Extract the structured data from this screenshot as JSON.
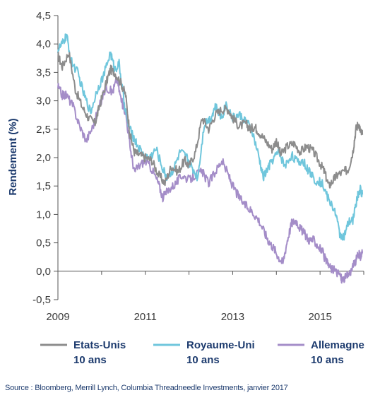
{
  "chart_data": {
    "type": "line",
    "ylabel": "Rendement (%)",
    "xlabel": "",
    "ylim": [
      -0.5,
      4.5
    ],
    "xlim": [
      2009.0,
      2016.0
    ],
    "y_ticks": [
      "4,5",
      "4,0",
      "3,5",
      "3,0",
      "2,5",
      "2,0",
      "1,5",
      "1,0",
      "0,5",
      "0,0",
      "-0,5"
    ],
    "x_ticks": [
      "2009",
      "2011",
      "2013",
      "2015"
    ],
    "grid": false,
    "legend_position": "bottom",
    "series": [
      {
        "name": "Etats-Unis 10 ans",
        "color": "#8c8c8c",
        "points": [
          [
            2009.0,
            3.8
          ],
          [
            2009.1,
            3.6
          ],
          [
            2009.25,
            3.85
          ],
          [
            2009.4,
            3.2
          ],
          [
            2009.55,
            2.9
          ],
          [
            2009.7,
            2.7
          ],
          [
            2009.85,
            2.6
          ],
          [
            2009.95,
            2.9
          ],
          [
            2010.1,
            3.3
          ],
          [
            2010.2,
            3.55
          ],
          [
            2010.3,
            3.5
          ],
          [
            2010.45,
            3.3
          ],
          [
            2010.55,
            3.1
          ],
          [
            2010.65,
            2.4
          ],
          [
            2010.75,
            2.1
          ],
          [
            2010.85,
            2.05
          ],
          [
            2011.0,
            2.0
          ],
          [
            2011.15,
            1.95
          ],
          [
            2011.3,
            1.7
          ],
          [
            2011.45,
            1.55
          ],
          [
            2011.6,
            1.85
          ],
          [
            2011.75,
            1.75
          ],
          [
            2011.9,
            1.95
          ],
          [
            2012.0,
            1.85
          ],
          [
            2012.15,
            2.1
          ],
          [
            2012.3,
            2.7
          ],
          [
            2012.45,
            2.5
          ],
          [
            2012.6,
            2.75
          ],
          [
            2012.75,
            2.85
          ],
          [
            2012.9,
            2.85
          ],
          [
            2013.0,
            2.7
          ],
          [
            2013.15,
            2.55
          ],
          [
            2013.3,
            2.6
          ],
          [
            2013.4,
            2.5
          ],
          [
            2013.5,
            2.55
          ],
          [
            2013.6,
            2.45
          ],
          [
            2013.75,
            2.3
          ],
          [
            2013.9,
            2.15
          ],
          [
            2014.0,
            2.3
          ],
          [
            2014.1,
            2.05
          ],
          [
            2014.25,
            2.2
          ],
          [
            2014.4,
            2.25
          ],
          [
            2014.55,
            2.1
          ],
          [
            2014.7,
            2.2
          ],
          [
            2014.85,
            2.1
          ],
          [
            2015.0,
            1.9
          ],
          [
            2015.1,
            1.75
          ],
          [
            2015.2,
            1.5
          ],
          [
            2015.3,
            1.6
          ],
          [
            2015.4,
            1.7
          ],
          [
            2015.55,
            1.75
          ],
          [
            2015.65,
            1.8
          ],
          [
            2015.75,
            2.1
          ],
          [
            2015.82,
            2.5
          ],
          [
            2015.88,
            2.6
          ],
          [
            2015.93,
            2.45
          ],
          [
            2015.97,
            2.4
          ]
        ]
      },
      {
        "name": "Royaume-Uni 10 ans",
        "color": "#6fc6dc",
        "points": [
          [
            2009.0,
            3.9
          ],
          [
            2009.1,
            4.0
          ],
          [
            2009.2,
            4.15
          ],
          [
            2009.3,
            3.7
          ],
          [
            2009.45,
            3.5
          ],
          [
            2009.6,
            3.1
          ],
          [
            2009.75,
            2.8
          ],
          [
            2009.9,
            3.2
          ],
          [
            2010.05,
            3.45
          ],
          [
            2010.2,
            3.85
          ],
          [
            2010.3,
            3.55
          ],
          [
            2010.4,
            3.65
          ],
          [
            2010.5,
            3.05
          ],
          [
            2010.6,
            2.6
          ],
          [
            2010.7,
            2.4
          ],
          [
            2010.8,
            2.25
          ],
          [
            2010.95,
            2.05
          ],
          [
            2011.1,
            2.0
          ],
          [
            2011.25,
            2.15
          ],
          [
            2011.4,
            1.8
          ],
          [
            2011.5,
            1.65
          ],
          [
            2011.65,
            1.8
          ],
          [
            2011.8,
            2.1
          ],
          [
            2011.95,
            2.0
          ],
          [
            2012.05,
            1.85
          ],
          [
            2012.2,
            1.65
          ],
          [
            2012.35,
            2.6
          ],
          [
            2012.5,
            2.7
          ],
          [
            2012.6,
            2.9
          ],
          [
            2012.75,
            2.7
          ],
          [
            2012.85,
            2.95
          ],
          [
            2013.0,
            2.7
          ],
          [
            2013.15,
            2.75
          ],
          [
            2013.3,
            2.65
          ],
          [
            2013.45,
            2.45
          ],
          [
            2013.6,
            2.0
          ],
          [
            2013.7,
            1.65
          ],
          [
            2013.8,
            1.8
          ],
          [
            2013.9,
            1.95
          ],
          [
            2014.05,
            2.1
          ],
          [
            2014.2,
            1.85
          ],
          [
            2014.35,
            2.05
          ],
          [
            2014.5,
            1.9
          ],
          [
            2014.6,
            1.95
          ],
          [
            2014.75,
            1.75
          ],
          [
            2014.9,
            1.6
          ],
          [
            2015.05,
            1.55
          ],
          [
            2015.2,
            1.25
          ],
          [
            2015.35,
            1.05
          ],
          [
            2015.45,
            0.65
          ],
          [
            2015.55,
            0.6
          ],
          [
            2015.65,
            0.85
          ],
          [
            2015.75,
            0.9
          ],
          [
            2015.85,
            1.3
          ],
          [
            2015.92,
            1.45
          ],
          [
            2015.97,
            1.35
          ]
        ]
      },
      {
        "name": "Allemagne 10 ans",
        "color": "#a48dc8",
        "points": [
          [
            2009.0,
            3.25
          ],
          [
            2009.1,
            3.1
          ],
          [
            2009.2,
            3.1
          ],
          [
            2009.35,
            2.9
          ],
          [
            2009.5,
            2.55
          ],
          [
            2009.65,
            2.3
          ],
          [
            2009.8,
            2.55
          ],
          [
            2009.95,
            2.9
          ],
          [
            2010.1,
            3.25
          ],
          [
            2010.25,
            3.15
          ],
          [
            2010.35,
            3.4
          ],
          [
            2010.45,
            3.0
          ],
          [
            2010.55,
            2.8
          ],
          [
            2010.65,
            2.2
          ],
          [
            2010.75,
            1.75
          ],
          [
            2010.85,
            1.85
          ],
          [
            2011.0,
            1.95
          ],
          [
            2011.15,
            1.8
          ],
          [
            2011.3,
            1.55
          ],
          [
            2011.4,
            1.3
          ],
          [
            2011.55,
            1.45
          ],
          [
            2011.7,
            1.55
          ],
          [
            2011.85,
            1.7
          ],
          [
            2012.0,
            1.6
          ],
          [
            2012.15,
            1.7
          ],
          [
            2012.3,
            1.75
          ],
          [
            2012.45,
            1.55
          ],
          [
            2012.6,
            1.75
          ],
          [
            2012.75,
            1.95
          ],
          [
            2012.9,
            1.7
          ],
          [
            2013.0,
            1.5
          ],
          [
            2013.15,
            1.3
          ],
          [
            2013.3,
            1.15
          ],
          [
            2013.45,
            1.05
          ],
          [
            2013.6,
            0.9
          ],
          [
            2013.75,
            0.65
          ],
          [
            2013.85,
            0.5
          ],
          [
            2013.95,
            0.4
          ],
          [
            2014.05,
            0.25
          ],
          [
            2014.15,
            0.15
          ],
          [
            2014.25,
            0.55
          ],
          [
            2014.35,
            0.85
          ],
          [
            2014.45,
            0.9
          ],
          [
            2014.55,
            0.75
          ],
          [
            2014.65,
            0.65
          ],
          [
            2014.75,
            0.55
          ],
          [
            2014.85,
            0.55
          ],
          [
            2014.95,
            0.45
          ],
          [
            2015.05,
            0.35
          ],
          [
            2015.15,
            0.15
          ],
          [
            2015.25,
            0.05
          ],
          [
            2015.35,
            0.0
          ],
          [
            2015.45,
            -0.05
          ],
          [
            2015.5,
            -0.15
          ],
          [
            2015.6,
            -0.1
          ],
          [
            2015.7,
            0.0
          ],
          [
            2015.8,
            0.15
          ],
          [
            2015.88,
            0.3
          ],
          [
            2015.93,
            0.25
          ],
          [
            2015.97,
            0.35
          ]
        ]
      }
    ],
    "legend": [
      {
        "line1": "Etats-Unis",
        "line2": "10 ans",
        "color": "#8c8c8c"
      },
      {
        "line1": "Royaume-Uni",
        "line2": "10 ans",
        "color": "#6fc6dc"
      },
      {
        "line1": "Allemagne",
        "line2": "10 ans",
        "color": "#a48dc8"
      }
    ]
  },
  "source": "Source : Bloomberg, Merrill Lynch, Columbia Threadneedle Investments, janvier 2017"
}
